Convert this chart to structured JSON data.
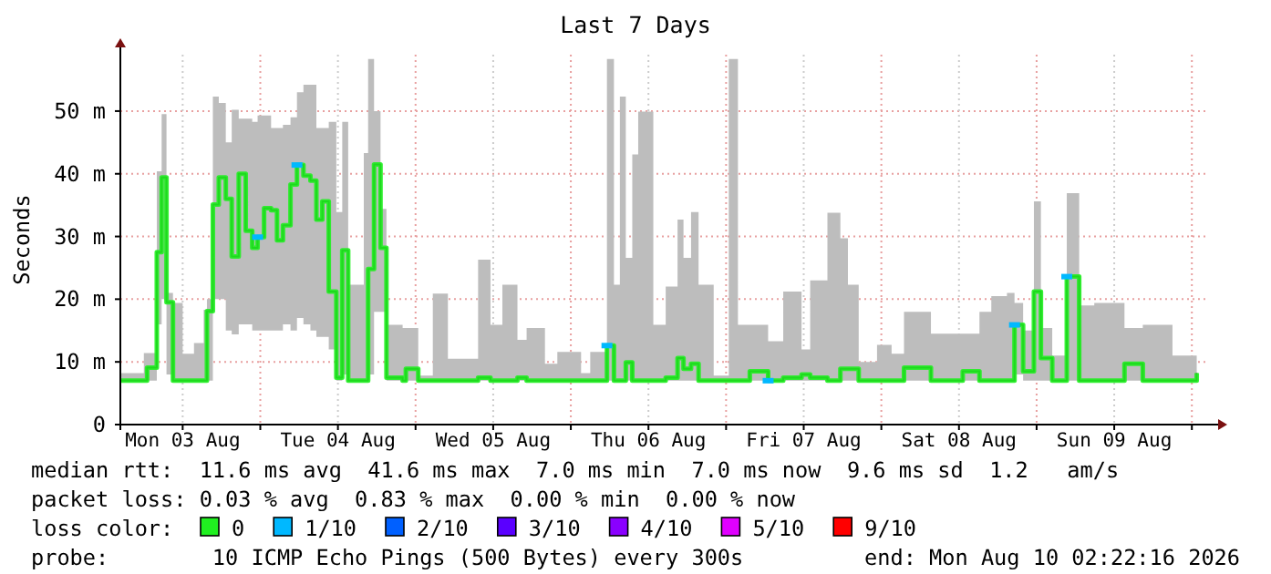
{
  "chart_data": {
    "type": "step",
    "title": "Last 7 Days",
    "ylabel": "Seconds",
    "xlim": [
      "2026-08-03T02:22",
      "2026-08-10T02:22"
    ],
    "xticks": [
      {
        "value": "2026-08-03T12:00",
        "label": "Mon 03 Aug"
      },
      {
        "value": "2026-08-04T00:00",
        "label": null
      },
      {
        "value": "2026-08-04T12:00",
        "label": "Tue 04 Aug"
      },
      {
        "value": "2026-08-05T00:00",
        "label": null
      },
      {
        "value": "2026-08-05T12:00",
        "label": "Wed 05 Aug"
      },
      {
        "value": "2026-08-06T00:00",
        "label": null
      },
      {
        "value": "2026-08-06T12:00",
        "label": "Thu 06 Aug"
      },
      {
        "value": "2026-08-07T00:00",
        "label": null
      },
      {
        "value": "2026-08-07T12:00",
        "label": "Fri 07 Aug"
      },
      {
        "value": "2026-08-08T00:00",
        "label": null
      },
      {
        "value": "2026-08-08T12:00",
        "label": "Sat 08 Aug"
      },
      {
        "value": "2026-08-09T00:00",
        "label": null
      },
      {
        "value": "2026-08-09T12:00",
        "label": "Sun 09 Aug"
      },
      {
        "value": "2026-08-10T00:00",
        "label": null
      }
    ],
    "ylim": [
      0,
      59
    ],
    "yticks": [
      0,
      {
        "value": 10,
        "label": "10 m"
      },
      {
        "value": 20,
        "label": "20 m"
      },
      {
        "value": 30,
        "label": "30 m"
      },
      {
        "value": 40,
        "label": "40 m"
      },
      {
        "value": 50,
        "label": "50 m"
      }
    ],
    "grid": true,
    "legend": "bottom",
    "series": [
      {
        "name": "0",
        "color": "#20f020",
        "x": [
          "2026-08-03T02:22",
          "2026-08-03T06:00",
          "2026-08-03T06:30",
          "2026-08-03T08:00",
          "2026-08-03T08:45",
          "2026-08-03T09:30",
          "2026-08-03T10:30",
          "2026-08-03T12:00",
          "2026-08-03T13:45",
          "2026-08-03T15:15",
          "2026-08-03T15:45",
          "2026-08-03T16:40",
          "2026-08-03T17:35",
          "2026-08-03T18:40",
          "2026-08-03T19:35",
          "2026-08-03T20:40",
          "2026-08-03T21:45",
          "2026-08-03T22:45",
          "2026-08-03T23:35",
          "2026-08-04T00:35",
          "2026-08-04T01:40",
          "2026-08-04T02:35",
          "2026-08-04T03:30",
          "2026-08-04T04:40",
          "2026-08-04T05:40",
          "2026-08-04T06:40",
          "2026-08-04T07:45",
          "2026-08-04T08:40",
          "2026-08-04T09:35",
          "2026-08-04T10:35",
          "2026-08-04T11:45",
          "2026-08-04T12:40",
          "2026-08-04T13:35",
          "2026-08-04T16:00",
          "2026-08-04T16:40",
          "2026-08-04T17:35",
          "2026-08-04T18:35",
          "2026-08-04T19:30",
          "2026-08-04T22:00",
          "2026-08-04T22:30",
          "2026-08-05T00:25",
          "2026-08-05T02:40",
          "2026-08-05T05:00",
          "2026-08-05T09:40",
          "2026-08-05T11:35",
          "2026-08-05T13:25",
          "2026-08-05T15:45",
          "2026-08-05T17:10",
          "2026-08-05T20:00",
          "2026-08-05T21:55",
          "2026-08-06T01:35",
          "2026-08-06T03:00",
          "2026-08-06T05:35",
          "2026-08-06T06:40",
          "2026-08-06T07:35",
          "2026-08-06T08:30",
          "2026-08-06T09:30",
          "2026-08-06T10:25",
          "2026-08-06T12:45",
          "2026-08-06T14:40",
          "2026-08-06T16:30",
          "2026-08-06T17:25",
          "2026-08-06T18:35",
          "2026-08-06T19:45",
          "2026-08-06T22:05",
          "2026-08-07T00:25",
          "2026-08-07T01:50",
          "2026-08-07T03:40",
          "2026-08-07T06:30",
          "2026-08-07T08:50",
          "2026-08-07T11:40",
          "2026-08-07T13:00",
          "2026-08-07T15:40",
          "2026-08-07T17:40",
          "2026-08-07T18:50",
          "2026-08-07T20:30",
          "2026-08-07T23:20",
          "2026-08-08T01:35",
          "2026-08-08T03:30",
          "2026-08-08T07:40",
          "2026-08-08T12:35",
          "2026-08-08T15:10",
          "2026-08-08T17:00",
          "2026-08-08T19:25",
          "2026-08-08T20:35",
          "2026-08-08T21:55",
          "2026-08-08T23:35",
          "2026-08-09T00:40",
          "2026-08-09T02:25",
          "2026-08-09T04:40",
          "2026-08-09T06:35",
          "2026-08-09T08:55",
          "2026-08-09T13:35",
          "2026-08-09T16:25",
          "2026-08-09T21:00",
          "2026-08-10T00:45"
        ],
        "values": [
          7,
          7,
          9.1,
          27.5,
          39.4,
          19.5,
          7,
          7,
          7,
          7,
          18.1,
          35.1,
          39.4,
          36,
          26.8,
          40,
          30.9,
          28.2,
          29.9,
          34.5,
          34.2,
          29.4,
          31.8,
          38.3,
          41.4,
          39.7,
          38.9,
          32.7,
          35.6,
          21.2,
          7.5,
          27.8,
          7,
          7,
          24.8,
          41.5,
          28.2,
          7.5,
          7,
          8.9,
          7,
          7,
          7,
          7.5,
          7,
          7,
          7.5,
          7,
          7,
          7,
          7,
          7,
          12.6,
          7,
          7,
          9.9,
          7,
          7,
          7,
          7.5,
          10.6,
          8.9,
          9.7,
          7,
          7,
          7,
          7,
          8.5,
          7,
          7.5,
          8,
          7.5,
          7,
          8.9,
          8.9,
          7,
          7,
          7,
          9.1,
          7,
          8.5,
          7,
          7,
          7,
          15.9,
          8.5,
          21.2,
          10.6,
          7,
          23.6,
          7,
          7,
          9.7,
          7,
          7,
          8.2
        ],
        "lower": [
          7,
          7,
          7,
          16,
          20,
          8,
          7,
          7,
          7,
          7,
          7,
          20,
          20,
          15,
          14.4,
          16,
          16,
          15,
          15,
          15,
          15,
          15,
          16,
          15,
          17,
          16,
          15,
          14,
          14,
          12,
          7,
          8,
          7,
          7,
          8,
          18,
          18,
          7,
          7,
          7,
          7,
          7,
          7,
          7,
          7,
          7,
          7,
          7,
          7,
          7,
          7,
          7,
          7,
          7,
          7,
          7,
          7,
          7,
          7,
          7,
          7,
          7,
          7,
          7,
          7,
          7,
          7,
          7,
          7,
          7,
          7,
          7,
          7,
          7,
          7,
          7,
          7,
          7,
          7,
          7,
          7,
          7,
          7,
          7,
          8,
          7,
          7,
          7,
          7,
          7,
          7,
          7,
          7,
          7,
          7,
          7
        ],
        "upper": [
          8.2,
          11.4,
          11.4,
          40.4,
          49.5,
          21,
          19.4,
          11.3,
          13,
          18.3,
          20,
          52.3,
          51.3,
          45,
          50.2,
          48.8,
          48.8,
          48.3,
          49.3,
          49.3,
          47.3,
          47.3,
          47.8,
          49,
          53,
          54.2,
          54.2,
          47.3,
          47.3,
          48.3,
          33.9,
          48.3,
          22.3,
          43.3,
          58.3,
          50,
          34.4,
          15.9,
          15.4,
          15.4,
          7.8,
          20.9,
          10.5,
          26.3,
          15.9,
          22.3,
          13.5,
          15.4,
          9.7,
          11.6,
          8.2,
          11.6,
          58.3,
          22.3,
          52.3,
          26.6,
          43.1,
          49.9,
          15.9,
          22,
          32.7,
          26.6,
          33.9,
          22.3,
          7.8,
          58.3,
          15.9,
          15.9,
          13.3,
          21.2,
          12,
          23,
          33.8,
          29.7,
          22.3,
          10,
          12.7,
          11.3,
          18,
          14.5,
          14.5,
          18,
          20.5,
          21,
          19.4,
          15,
          35.6,
          15.4,
          11,
          36.9,
          19,
          19.4,
          15.4,
          15.9,
          11,
          17.4
        ]
      },
      {
        "name": "1/10",
        "type": "scatter",
        "color": "#00b8ff",
        "x": [
          "2026-08-03T23:35",
          "2026-08-04T05:40",
          "2026-08-06T05:35",
          "2026-08-07T06:30",
          "2026-08-08T20:35",
          "2026-08-09T04:40"
        ],
        "values": [
          29.9,
          41.4,
          12.6,
          7,
          15.9,
          23.6
        ]
      },
      {
        "name": "2/10",
        "type": "scatter",
        "color": "#0060ff"
      },
      {
        "name": "3/10",
        "type": "scatter",
        "color": "#5a00ff"
      },
      {
        "name": "4/10",
        "type": "scatter",
        "color": "#8a00ff"
      },
      {
        "name": "5/10",
        "type": "scatter",
        "color": "#e000ff"
      },
      {
        "name": "9/10",
        "type": "scatter",
        "color": "#ff0000"
      }
    ],
    "annotations": [
      "median rtt:  11.6 ms avg  41.6 ms max  7.0 ms min  7.0 ms now  9.6 ms sd  1.2   am/s",
      "packet loss: 0.03 % avg  0.83 % max  0.00 % min  0.00 % now",
      "loss color:",
      "probe:        10 ICMP Echo Pings (500 Bytes) every 300s",
      "end: Mon Aug 10 02:22:16 2026"
    ]
  }
}
